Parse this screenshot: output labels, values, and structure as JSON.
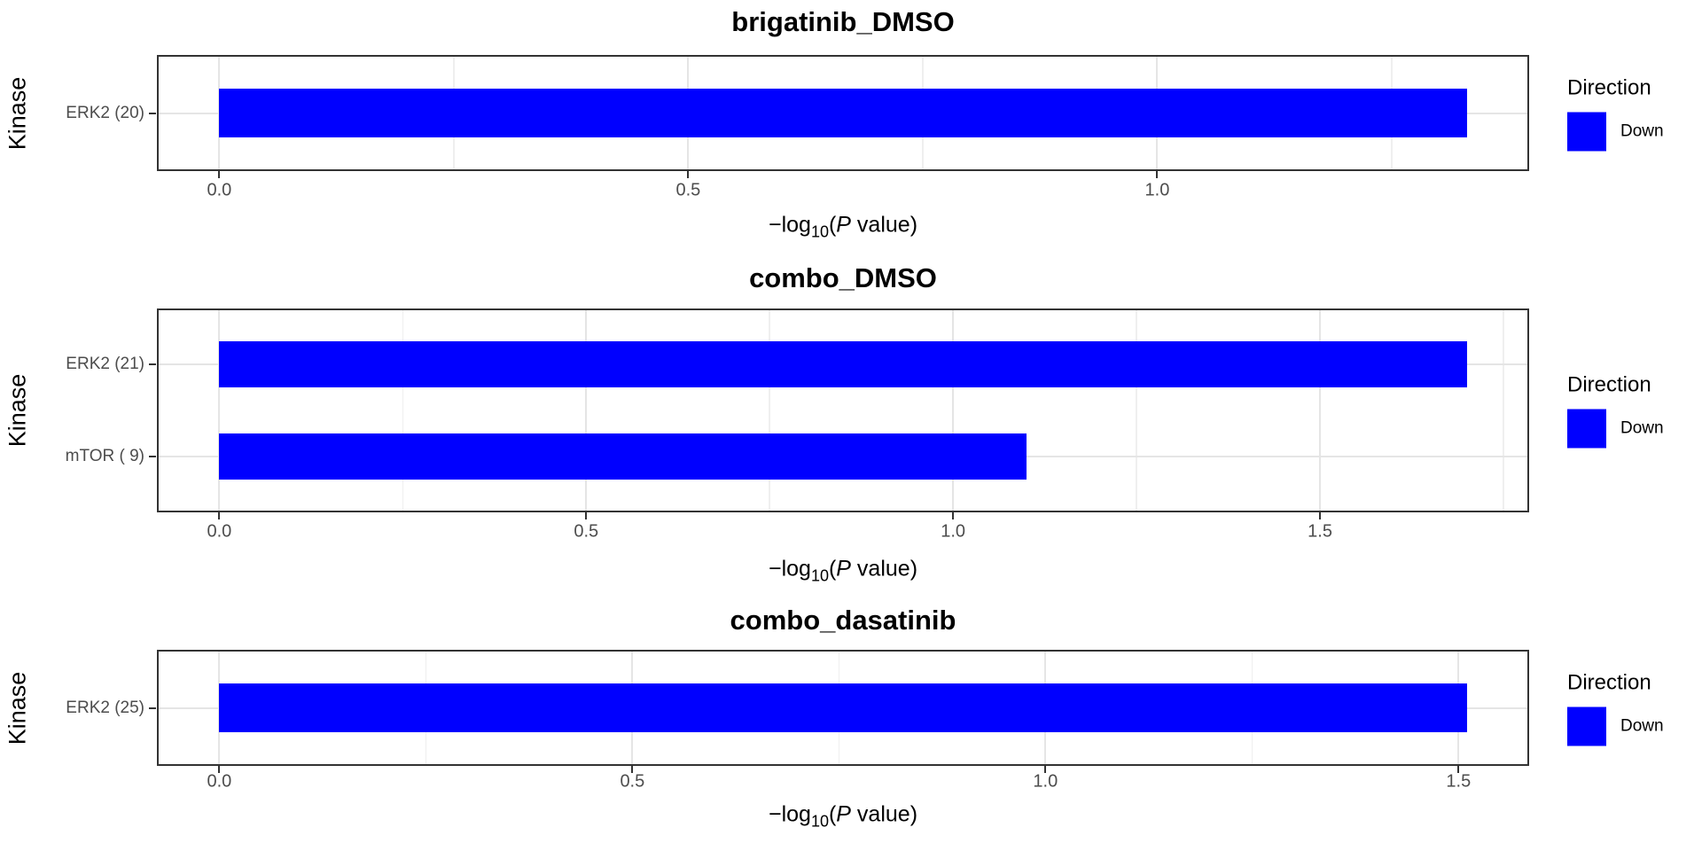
{
  "page": {
    "background": "#ffffff"
  },
  "colors": {
    "bar_blue": "#0000FF",
    "panel_border": "#333333",
    "grid_major": "#E5E5E5",
    "grid_minor": "#EFEFEF",
    "axis_text": "#4D4D4D",
    "title_text": "#000000"
  },
  "chart_data": [
    {
      "type": "bar",
      "orientation": "horizontal",
      "title": "brigatinib_DMSO",
      "ylabel": "Kinase",
      "xlabel": {
        "pre": "−log",
        "sub": "10",
        "open": "(",
        "pvar": "P",
        "post": " value)"
      },
      "categories": [
        "ERK2 (20)"
      ],
      "values": [
        1.33
      ],
      "bar_color": "#0000FF",
      "x_ticks": [
        0.0,
        0.5,
        1.0
      ],
      "x_tick_labels": [
        "0.0",
        "0.5",
        "1.0"
      ],
      "x_minor_ticks": [
        0.25,
        0.75,
        1.25
      ],
      "xlim": [
        -0.0665,
        1.3965
      ],
      "grid": true,
      "legend_position": "right",
      "legend": {
        "title": "Direction",
        "entries": [
          {
            "label": "Down",
            "color": "#0000FF"
          }
        ]
      }
    },
    {
      "type": "bar",
      "orientation": "horizontal",
      "title": "combo_DMSO",
      "ylabel": "Kinase",
      "xlabel": {
        "pre": "−log",
        "sub": "10",
        "open": "(",
        "pvar": "P",
        "post": " value)"
      },
      "categories": [
        "ERK2 (21)",
        "mTOR ( 9)"
      ],
      "values": [
        1.7,
        1.1
      ],
      "bar_color": "#0000FF",
      "x_ticks": [
        0.0,
        0.5,
        1.0,
        1.5
      ],
      "x_tick_labels": [
        "0.0",
        "0.5",
        "1.0",
        "1.5"
      ],
      "x_minor_ticks": [
        0.25,
        0.75,
        1.25,
        1.75
      ],
      "xlim": [
        -0.085,
        1.785
      ],
      "grid": true,
      "legend_position": "right",
      "legend": {
        "title": "Direction",
        "entries": [
          {
            "label": "Down",
            "color": "#0000FF"
          }
        ]
      }
    },
    {
      "type": "bar",
      "orientation": "horizontal",
      "title": "combo_dasatinib",
      "ylabel": "Kinase",
      "xlabel": {
        "pre": "−log",
        "sub": "10",
        "open": "(",
        "pvar": "P",
        "post": " value)"
      },
      "categories": [
        "ERK2 (25)"
      ],
      "values": [
        1.51
      ],
      "bar_color": "#0000FF",
      "x_ticks": [
        0.0,
        0.5,
        1.0,
        1.5
      ],
      "x_tick_labels": [
        "0.0",
        "0.5",
        "1.0",
        "1.5"
      ],
      "x_minor_ticks": [
        0.25,
        0.75,
        1.25
      ],
      "xlim": [
        -0.0755,
        1.5855
      ],
      "grid": true,
      "legend_position": "right",
      "legend": {
        "title": "Direction",
        "entries": [
          {
            "label": "Down",
            "color": "#0000FF"
          }
        ]
      }
    }
  ]
}
